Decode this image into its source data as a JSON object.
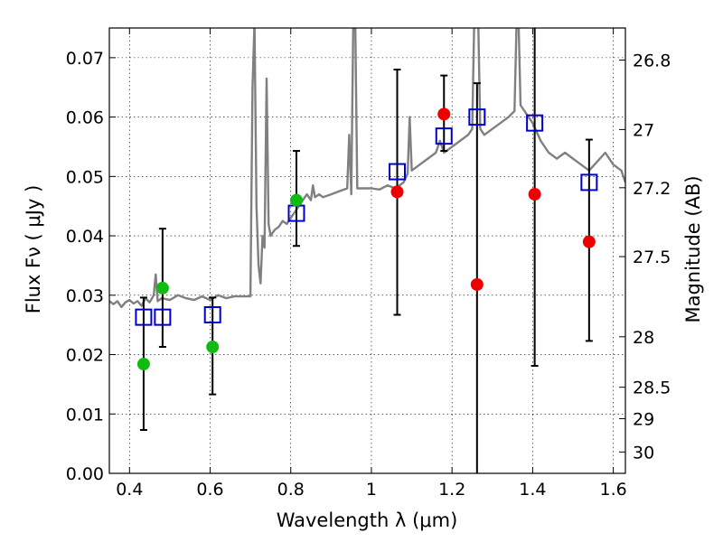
{
  "chart_data": {
    "type": "scatter",
    "title": "",
    "xlabel": "Wavelength  λ (μm)",
    "ylabel": "Flux  Fν  ( μJy )",
    "ylabel_right": "Magnitude (AB)",
    "xlim": [
      0.35,
      1.63
    ],
    "ylim": [
      0.0,
      0.075
    ],
    "grid": true,
    "x_ticks": [
      0.4,
      0.6,
      0.8,
      1.0,
      1.2,
      1.4,
      1.6
    ],
    "x_tick_labels": [
      "0.4",
      "0.6",
      "0.8",
      "1",
      "1.2",
      "1.4",
      "1.6"
    ],
    "y_ticks": [
      0.0,
      0.01,
      0.02,
      0.03,
      0.04,
      0.05,
      0.06,
      0.07
    ],
    "y_tick_labels": [
      "0.00",
      "0.01",
      "0.02",
      "0.03",
      "0.04",
      "0.05",
      "0.06",
      "0.07"
    ],
    "magnitude_ticks": [
      {
        "label": "26.8",
        "flux": 0.0696
      },
      {
        "label": "27",
        "flux": 0.0579
      },
      {
        "label": "27.2",
        "flux": 0.0481
      },
      {
        "label": "27.5",
        "flux": 0.0365
      },
      {
        "label": "28",
        "flux": 0.023
      },
      {
        "label": "28.5",
        "flux": 0.0145
      },
      {
        "label": "29",
        "flux": 0.0092
      },
      {
        "label": "30",
        "flux": 0.0036
      }
    ],
    "series": [
      {
        "kind": "model_spectrum",
        "color": "#808080",
        "x": [
          0.35,
          0.36,
          0.37,
          0.38,
          0.39,
          0.4,
          0.41,
          0.42,
          0.43,
          0.44,
          0.45,
          0.46,
          0.465,
          0.47,
          0.48,
          0.5,
          0.52,
          0.54,
          0.56,
          0.58,
          0.6,
          0.62,
          0.64,
          0.66,
          0.68,
          0.7,
          0.705,
          0.71,
          0.715,
          0.72,
          0.725,
          0.73,
          0.735,
          0.74,
          0.745,
          0.75,
          0.76,
          0.77,
          0.78,
          0.79,
          0.8,
          0.81,
          0.82,
          0.83,
          0.84,
          0.85,
          0.855,
          0.86,
          0.87,
          0.88,
          0.9,
          0.92,
          0.94,
          0.945,
          0.95,
          0.955,
          0.96,
          0.965,
          0.97,
          1.0,
          1.02,
          1.04,
          1.06,
          1.08,
          1.09,
          1.095,
          1.1,
          1.12,
          1.14,
          1.16,
          1.17,
          1.18,
          1.2,
          1.22,
          1.24,
          1.25,
          1.255,
          1.26,
          1.265,
          1.27,
          1.28,
          1.3,
          1.32,
          1.34,
          1.355,
          1.36,
          1.365,
          1.37,
          1.4,
          1.42,
          1.44,
          1.46,
          1.48,
          1.5,
          1.52,
          1.54,
          1.56,
          1.58,
          1.6,
          1.62,
          1.63
        ],
        "y": [
          0.029,
          0.0285,
          0.029,
          0.028,
          0.0288,
          0.0292,
          0.0286,
          0.029,
          0.0282,
          0.0295,
          0.0288,
          0.03,
          0.0335,
          0.029,
          0.0295,
          0.0292,
          0.03,
          0.0295,
          0.0292,
          0.0298,
          0.0292,
          0.03,
          0.0295,
          0.0298,
          0.0298,
          0.0298,
          0.065,
          0.076,
          0.045,
          0.035,
          0.032,
          0.04,
          0.038,
          0.0665,
          0.042,
          0.04,
          0.041,
          0.0415,
          0.0425,
          0.042,
          0.043,
          0.044,
          0.045,
          0.046,
          0.047,
          0.046,
          0.0485,
          0.0465,
          0.047,
          0.0465,
          0.047,
          0.0475,
          0.048,
          0.057,
          0.047,
          0.076,
          0.076,
          0.048,
          0.048,
          0.048,
          0.0478,
          0.0485,
          0.048,
          0.049,
          0.0505,
          0.06,
          0.051,
          0.052,
          0.053,
          0.054,
          0.056,
          0.054,
          0.055,
          0.056,
          0.057,
          0.058,
          0.076,
          0.076,
          0.076,
          0.058,
          0.057,
          0.058,
          0.059,
          0.06,
          0.061,
          0.076,
          0.076,
          0.062,
          0.059,
          0.056,
          0.054,
          0.053,
          0.054,
          0.053,
          0.052,
          0.051,
          0.0525,
          0.054,
          0.052,
          0.051,
          0.049
        ]
      },
      {
        "kind": "model_photometry",
        "marker": "open-square",
        "color": "#0000cc",
        "x": [
          0.435,
          0.482,
          0.606,
          0.814,
          1.064,
          1.18,
          1.262,
          1.405,
          1.54
        ],
        "y": [
          0.0263,
          0.0263,
          0.0267,
          0.0438,
          0.0508,
          0.0568,
          0.06,
          0.059,
          0.049
        ]
      },
      {
        "kind": "observed_green",
        "marker": "filled-circle",
        "color": "#11bb11",
        "x": [
          0.435,
          0.482,
          0.606,
          0.814
        ],
        "y": [
          0.0184,
          0.0312,
          0.0213,
          0.046
        ],
        "yerr_low": [
          0.0073,
          0.0213,
          0.0133,
          0.0383
        ],
        "yerr_high": [
          0.0296,
          0.0412,
          0.0296,
          0.0543
        ]
      },
      {
        "kind": "observed_red",
        "marker": "filled-circle",
        "color": "#ee0000",
        "x": [
          1.064,
          1.18,
          1.262,
          1.405,
          1.54
        ],
        "y": [
          0.0474,
          0.0605,
          0.0318,
          0.047,
          0.039
        ],
        "yerr_low": [
          0.0267,
          0.0543,
          0.0,
          0.0181,
          0.0223
        ],
        "yerr_high": [
          0.068,
          0.067,
          0.0657,
          0.076,
          0.0562
        ]
      }
    ]
  }
}
